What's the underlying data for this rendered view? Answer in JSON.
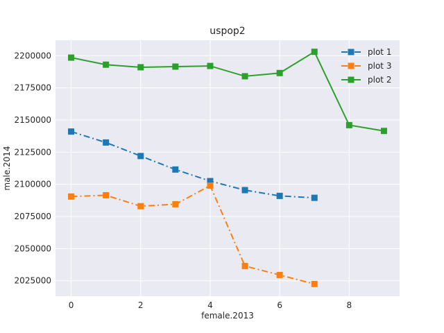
{
  "chart_data": {
    "type": "line",
    "title": "uspop2",
    "xlabel": "female.2013",
    "ylabel": "male.2014",
    "xlim": [
      -0.45,
      9.45
    ],
    "ylim": [
      2013000,
      2212000
    ],
    "xticks": [
      0,
      2,
      4,
      6,
      8
    ],
    "yticks": [
      2025000,
      2050000,
      2075000,
      2100000,
      2125000,
      2150000,
      2175000,
      2200000
    ],
    "grid": true,
    "legend": "top-right",
    "series": [
      {
        "name": "plot 1",
        "color": "#1f77b4",
        "linestyle": "dashdot",
        "marker": "square",
        "x": [
          0,
          1,
          2,
          3,
          4,
          5,
          6,
          7
        ],
        "y": [
          2141000,
          2132500,
          2122000,
          2111500,
          2102500,
          2095500,
          2091000,
          2089500
        ]
      },
      {
        "name": "plot 3",
        "color": "#ff7f0e",
        "linestyle": "dashdot",
        "marker": "square",
        "x": [
          0,
          1,
          2,
          3,
          4,
          5,
          6,
          7
        ],
        "y": [
          2090500,
          2091500,
          2083000,
          2084500,
          2099000,
          2036500,
          2029500,
          2022500
        ]
      },
      {
        "name": "plot 2",
        "color": "#2ca02c",
        "linestyle": "solid",
        "marker": "square",
        "x": [
          0,
          1,
          2,
          3,
          4,
          5,
          6,
          7,
          8,
          9
        ],
        "y": [
          2198500,
          2193000,
          2191000,
          2191500,
          2192000,
          2184000,
          2186500,
          2203000,
          2146000,
          2141500
        ]
      }
    ],
    "legend_order": [
      0,
      1,
      2
    ]
  }
}
